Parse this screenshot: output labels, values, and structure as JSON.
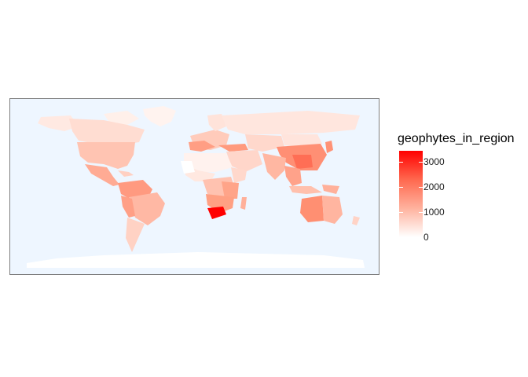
{
  "legend": {
    "title": "geophytes_in_region",
    "ticks": [
      "3000",
      "2000",
      "1000",
      "0"
    ],
    "tick_values": [
      3000,
      2000,
      1000,
      0
    ],
    "min": 0,
    "max": 3450
  },
  "colors": {
    "ocean": "#eef6ff",
    "antarctica": "#ffffff",
    "low": "#ffffff",
    "high": "#ff0000",
    "panel_border": "#7f7f7f"
  }
}
